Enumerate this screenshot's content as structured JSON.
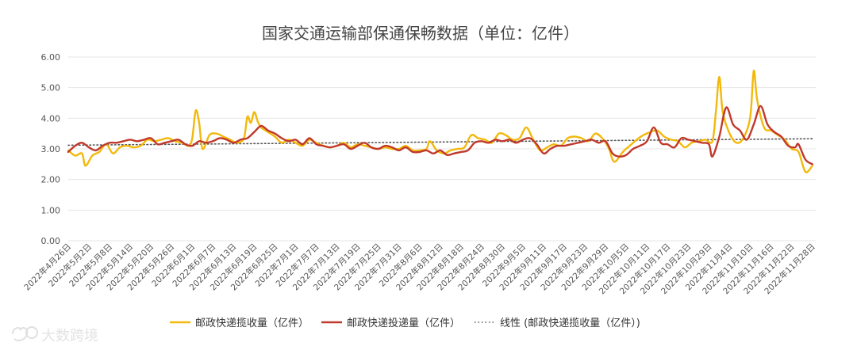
{
  "chart_data": {
    "type": "line",
    "title": "国家交通运输部保通保畅数据（单位：亿件）",
    "xlabel": "",
    "ylabel": "",
    "ylim": [
      0,
      6
    ],
    "yticks": [
      "0.00",
      "1.00",
      "2.00",
      "3.00",
      "4.00",
      "5.00",
      "6.00"
    ],
    "xticks": [
      "2022年4月26日",
      "2022年5月2日",
      "2022年5月8日",
      "2022年5月14日",
      "2022年5月20日",
      "2022年5月26日",
      "2022年6月1日",
      "2022年6月7日",
      "2022年6月13日",
      "2022年6月19日",
      "2022年6月25日",
      "2022年7月1日",
      "2022年7月7日",
      "2022年7月13日",
      "2022年7月19日",
      "2022年7月25日",
      "2022年7月31日",
      "2022年8月6日",
      "2022年8月12日",
      "2022年8月18日",
      "2022年8月24日",
      "2022年8月30日",
      "2022年9月5日",
      "2022年9月11日",
      "2022年9月17日",
      "2022年9月23日",
      "2022年9月29日",
      "2022年10月5日",
      "2022年10月11日",
      "2022年10月17日",
      "2022年10月23日",
      "2022年10月29日",
      "2022年11月4日",
      "2022年11月10日",
      "2022年11月16日",
      "2022年11月22日",
      "2022年11月28日"
    ],
    "x_start": "2022-04-26",
    "x_end": "2022-11-29",
    "grid": "horizontal",
    "legend_position": "bottom",
    "series": [
      {
        "name": "邮政快递揽收量（亿件）",
        "color": "#F2B90C",
        "points": [
          [
            "2022-04-26",
            2.95
          ],
          [
            "2022-04-28",
            2.78
          ],
          [
            "2022-04-30",
            2.85
          ],
          [
            "2022-05-01",
            2.45
          ],
          [
            "2022-05-03",
            2.78
          ],
          [
            "2022-05-05",
            2.9
          ],
          [
            "2022-05-07",
            3.15
          ],
          [
            "2022-05-09",
            2.85
          ],
          [
            "2022-05-11",
            3.05
          ],
          [
            "2022-05-13",
            3.1
          ],
          [
            "2022-05-15",
            3.05
          ],
          [
            "2022-05-17",
            3.1
          ],
          [
            "2022-05-19",
            3.3
          ],
          [
            "2022-05-21",
            3.25
          ],
          [
            "2022-05-23",
            3.3
          ],
          [
            "2022-05-25",
            3.35
          ],
          [
            "2022-05-27",
            3.25
          ],
          [
            "2022-05-29",
            3.2
          ],
          [
            "2022-05-31",
            3.1
          ],
          [
            "2022-06-01",
            3.35
          ],
          [
            "2022-06-02",
            4.25
          ],
          [
            "2022-06-03",
            3.85
          ],
          [
            "2022-06-04",
            3.0
          ],
          [
            "2022-06-06",
            3.45
          ],
          [
            "2022-06-08",
            3.5
          ],
          [
            "2022-06-10",
            3.4
          ],
          [
            "2022-06-12",
            3.3
          ],
          [
            "2022-06-14",
            3.2
          ],
          [
            "2022-06-16",
            3.35
          ],
          [
            "2022-06-17",
            4.05
          ],
          [
            "2022-06-18",
            3.85
          ],
          [
            "2022-06-19",
            4.2
          ],
          [
            "2022-06-20",
            3.9
          ],
          [
            "2022-06-21",
            3.7
          ],
          [
            "2022-06-23",
            3.55
          ],
          [
            "2022-06-25",
            3.4
          ],
          [
            "2022-06-27",
            3.2
          ],
          [
            "2022-06-29",
            3.3
          ],
          [
            "2022-07-01",
            3.2
          ],
          [
            "2022-07-03",
            3.1
          ],
          [
            "2022-07-05",
            3.3
          ],
          [
            "2022-07-07",
            3.2
          ],
          [
            "2022-07-09",
            3.1
          ],
          [
            "2022-07-11",
            3.05
          ],
          [
            "2022-07-13",
            3.1
          ],
          [
            "2022-07-15",
            3.2
          ],
          [
            "2022-07-17",
            3.05
          ],
          [
            "2022-07-19",
            3.15
          ],
          [
            "2022-07-21",
            3.1
          ],
          [
            "2022-07-23",
            3.05
          ],
          [
            "2022-07-25",
            3.0
          ],
          [
            "2022-07-27",
            3.05
          ],
          [
            "2022-07-29",
            3.0
          ],
          [
            "2022-07-31",
            3.0
          ],
          [
            "2022-08-02",
            3.1
          ],
          [
            "2022-08-04",
            2.95
          ],
          [
            "2022-08-06",
            2.95
          ],
          [
            "2022-08-08",
            3.0
          ],
          [
            "2022-08-09",
            3.25
          ],
          [
            "2022-08-11",
            2.95
          ],
          [
            "2022-08-13",
            2.85
          ],
          [
            "2022-08-15",
            2.95
          ],
          [
            "2022-08-17",
            3.0
          ],
          [
            "2022-08-19",
            3.05
          ],
          [
            "2022-08-21",
            3.45
          ],
          [
            "2022-08-23",
            3.35
          ],
          [
            "2022-08-25",
            3.3
          ],
          [
            "2022-08-27",
            3.2
          ],
          [
            "2022-08-29",
            3.5
          ],
          [
            "2022-08-31",
            3.45
          ],
          [
            "2022-09-02",
            3.3
          ],
          [
            "2022-09-04",
            3.35
          ],
          [
            "2022-09-06",
            3.7
          ],
          [
            "2022-09-08",
            3.3
          ],
          [
            "2022-09-10",
            2.95
          ],
          [
            "2022-09-12",
            3.05
          ],
          [
            "2022-09-14",
            3.15
          ],
          [
            "2022-09-16",
            3.1
          ],
          [
            "2022-09-18",
            3.35
          ],
          [
            "2022-09-20",
            3.4
          ],
          [
            "2022-09-22",
            3.35
          ],
          [
            "2022-09-24",
            3.25
          ],
          [
            "2022-09-26",
            3.5
          ],
          [
            "2022-09-28",
            3.35
          ],
          [
            "2022-09-30",
            3.0
          ],
          [
            "2022-10-01",
            2.65
          ],
          [
            "2022-10-02",
            2.6
          ],
          [
            "2022-10-04",
            2.9
          ],
          [
            "2022-10-06",
            3.1
          ],
          [
            "2022-10-08",
            3.3
          ],
          [
            "2022-10-10",
            3.45
          ],
          [
            "2022-10-12",
            3.55
          ],
          [
            "2022-10-14",
            3.6
          ],
          [
            "2022-10-16",
            3.4
          ],
          [
            "2022-10-18",
            3.3
          ],
          [
            "2022-10-20",
            3.25
          ],
          [
            "2022-10-22",
            3.05
          ],
          [
            "2022-10-24",
            3.2
          ],
          [
            "2022-10-26",
            3.25
          ],
          [
            "2022-10-28",
            3.3
          ],
          [
            "2022-10-30",
            3.25
          ],
          [
            "2022-10-31",
            4.2
          ],
          [
            "2022-11-01",
            5.35
          ],
          [
            "2022-11-02",
            4.2
          ],
          [
            "2022-11-04",
            3.5
          ],
          [
            "2022-11-06",
            3.2
          ],
          [
            "2022-11-08",
            3.35
          ],
          [
            "2022-11-10",
            4.05
          ],
          [
            "2022-11-11",
            5.55
          ],
          [
            "2022-11-12",
            4.6
          ],
          [
            "2022-11-14",
            3.7
          ],
          [
            "2022-11-16",
            3.6
          ],
          [
            "2022-11-18",
            3.45
          ],
          [
            "2022-11-20",
            3.3
          ],
          [
            "2022-11-22",
            3.0
          ],
          [
            "2022-11-24",
            2.9
          ],
          [
            "2022-11-26",
            2.25
          ],
          [
            "2022-11-28",
            2.45
          ]
        ]
      },
      {
        "name": "邮政快递投递量（亿件）",
        "color": "#C0392B",
        "points": [
          [
            "2022-04-26",
            2.9
          ],
          [
            "2022-04-28",
            3.1
          ],
          [
            "2022-04-30",
            3.2
          ],
          [
            "2022-05-02",
            3.05
          ],
          [
            "2022-05-04",
            2.95
          ],
          [
            "2022-05-06",
            3.1
          ],
          [
            "2022-05-08",
            3.2
          ],
          [
            "2022-05-10",
            3.2
          ],
          [
            "2022-05-12",
            3.25
          ],
          [
            "2022-05-14",
            3.3
          ],
          [
            "2022-05-16",
            3.25
          ],
          [
            "2022-05-18",
            3.3
          ],
          [
            "2022-05-20",
            3.35
          ],
          [
            "2022-05-22",
            3.15
          ],
          [
            "2022-05-24",
            3.2
          ],
          [
            "2022-05-26",
            3.25
          ],
          [
            "2022-05-28",
            3.3
          ],
          [
            "2022-05-30",
            3.15
          ],
          [
            "2022-06-01",
            3.1
          ],
          [
            "2022-06-03",
            3.25
          ],
          [
            "2022-06-05",
            3.2
          ],
          [
            "2022-06-07",
            3.25
          ],
          [
            "2022-06-09",
            3.35
          ],
          [
            "2022-06-11",
            3.3
          ],
          [
            "2022-06-13",
            3.2
          ],
          [
            "2022-06-15",
            3.3
          ],
          [
            "2022-06-17",
            3.35
          ],
          [
            "2022-06-19",
            3.55
          ],
          [
            "2022-06-21",
            3.75
          ],
          [
            "2022-06-23",
            3.6
          ],
          [
            "2022-06-25",
            3.5
          ],
          [
            "2022-06-27",
            3.35
          ],
          [
            "2022-06-29",
            3.25
          ],
          [
            "2022-07-01",
            3.3
          ],
          [
            "2022-07-03",
            3.15
          ],
          [
            "2022-07-05",
            3.35
          ],
          [
            "2022-07-07",
            3.15
          ],
          [
            "2022-07-09",
            3.1
          ],
          [
            "2022-07-11",
            3.05
          ],
          [
            "2022-07-13",
            3.1
          ],
          [
            "2022-07-15",
            3.15
          ],
          [
            "2022-07-17",
            3.0
          ],
          [
            "2022-07-19",
            3.1
          ],
          [
            "2022-07-21",
            3.2
          ],
          [
            "2022-07-23",
            3.05
          ],
          [
            "2022-07-25",
            3.0
          ],
          [
            "2022-07-27",
            3.1
          ],
          [
            "2022-07-29",
            3.05
          ],
          [
            "2022-07-31",
            2.95
          ],
          [
            "2022-08-02",
            3.05
          ],
          [
            "2022-08-04",
            2.9
          ],
          [
            "2022-08-06",
            2.9
          ],
          [
            "2022-08-08",
            2.95
          ],
          [
            "2022-08-10",
            2.85
          ],
          [
            "2022-08-12",
            2.95
          ],
          [
            "2022-08-14",
            2.8
          ],
          [
            "2022-08-16",
            2.85
          ],
          [
            "2022-08-18",
            2.9
          ],
          [
            "2022-08-20",
            2.95
          ],
          [
            "2022-08-22",
            3.2
          ],
          [
            "2022-08-24",
            3.25
          ],
          [
            "2022-08-26",
            3.2
          ],
          [
            "2022-08-28",
            3.3
          ],
          [
            "2022-08-30",
            3.25
          ],
          [
            "2022-09-01",
            3.3
          ],
          [
            "2022-09-03",
            3.2
          ],
          [
            "2022-09-05",
            3.3
          ],
          [
            "2022-09-07",
            3.35
          ],
          [
            "2022-09-09",
            3.15
          ],
          [
            "2022-09-11",
            2.85
          ],
          [
            "2022-09-13",
            3.0
          ],
          [
            "2022-09-15",
            3.1
          ],
          [
            "2022-09-17",
            3.1
          ],
          [
            "2022-09-19",
            3.15
          ],
          [
            "2022-09-21",
            3.2
          ],
          [
            "2022-09-23",
            3.25
          ],
          [
            "2022-09-25",
            3.3
          ],
          [
            "2022-09-27",
            3.2
          ],
          [
            "2022-09-29",
            3.25
          ],
          [
            "2022-10-01",
            2.85
          ],
          [
            "2022-10-03",
            2.75
          ],
          [
            "2022-10-05",
            2.8
          ],
          [
            "2022-10-07",
            3.0
          ],
          [
            "2022-10-09",
            3.1
          ],
          [
            "2022-10-11",
            3.25
          ],
          [
            "2022-10-13",
            3.7
          ],
          [
            "2022-10-15",
            3.2
          ],
          [
            "2022-10-17",
            3.15
          ],
          [
            "2022-10-19",
            3.05
          ],
          [
            "2022-10-21",
            3.35
          ],
          [
            "2022-10-23",
            3.3
          ],
          [
            "2022-10-25",
            3.25
          ],
          [
            "2022-10-27",
            3.2
          ],
          [
            "2022-10-29",
            3.15
          ],
          [
            "2022-10-30",
            2.75
          ],
          [
            "2022-11-01",
            3.4
          ],
          [
            "2022-11-03",
            4.35
          ],
          [
            "2022-11-05",
            3.8
          ],
          [
            "2022-11-07",
            3.6
          ],
          [
            "2022-11-09",
            3.3
          ],
          [
            "2022-11-11",
            3.8
          ],
          [
            "2022-11-13",
            4.4
          ],
          [
            "2022-11-15",
            3.8
          ],
          [
            "2022-11-17",
            3.55
          ],
          [
            "2022-11-19",
            3.4
          ],
          [
            "2022-11-21",
            3.1
          ],
          [
            "2022-11-23",
            3.05
          ],
          [
            "2022-11-24",
            3.15
          ],
          [
            "2022-11-26",
            2.65
          ],
          [
            "2022-11-28",
            2.5
          ]
        ]
      },
      {
        "name": "线性 (邮政快递揽收量（亿件）)",
        "color": "#555555",
        "style": "dotted",
        "points": [
          [
            "2022-04-26",
            3.12
          ],
          [
            "2022-11-28",
            3.33
          ]
        ]
      }
    ]
  },
  "watermark": {
    "text": "大数跨境",
    "icon": "logo-icon"
  }
}
